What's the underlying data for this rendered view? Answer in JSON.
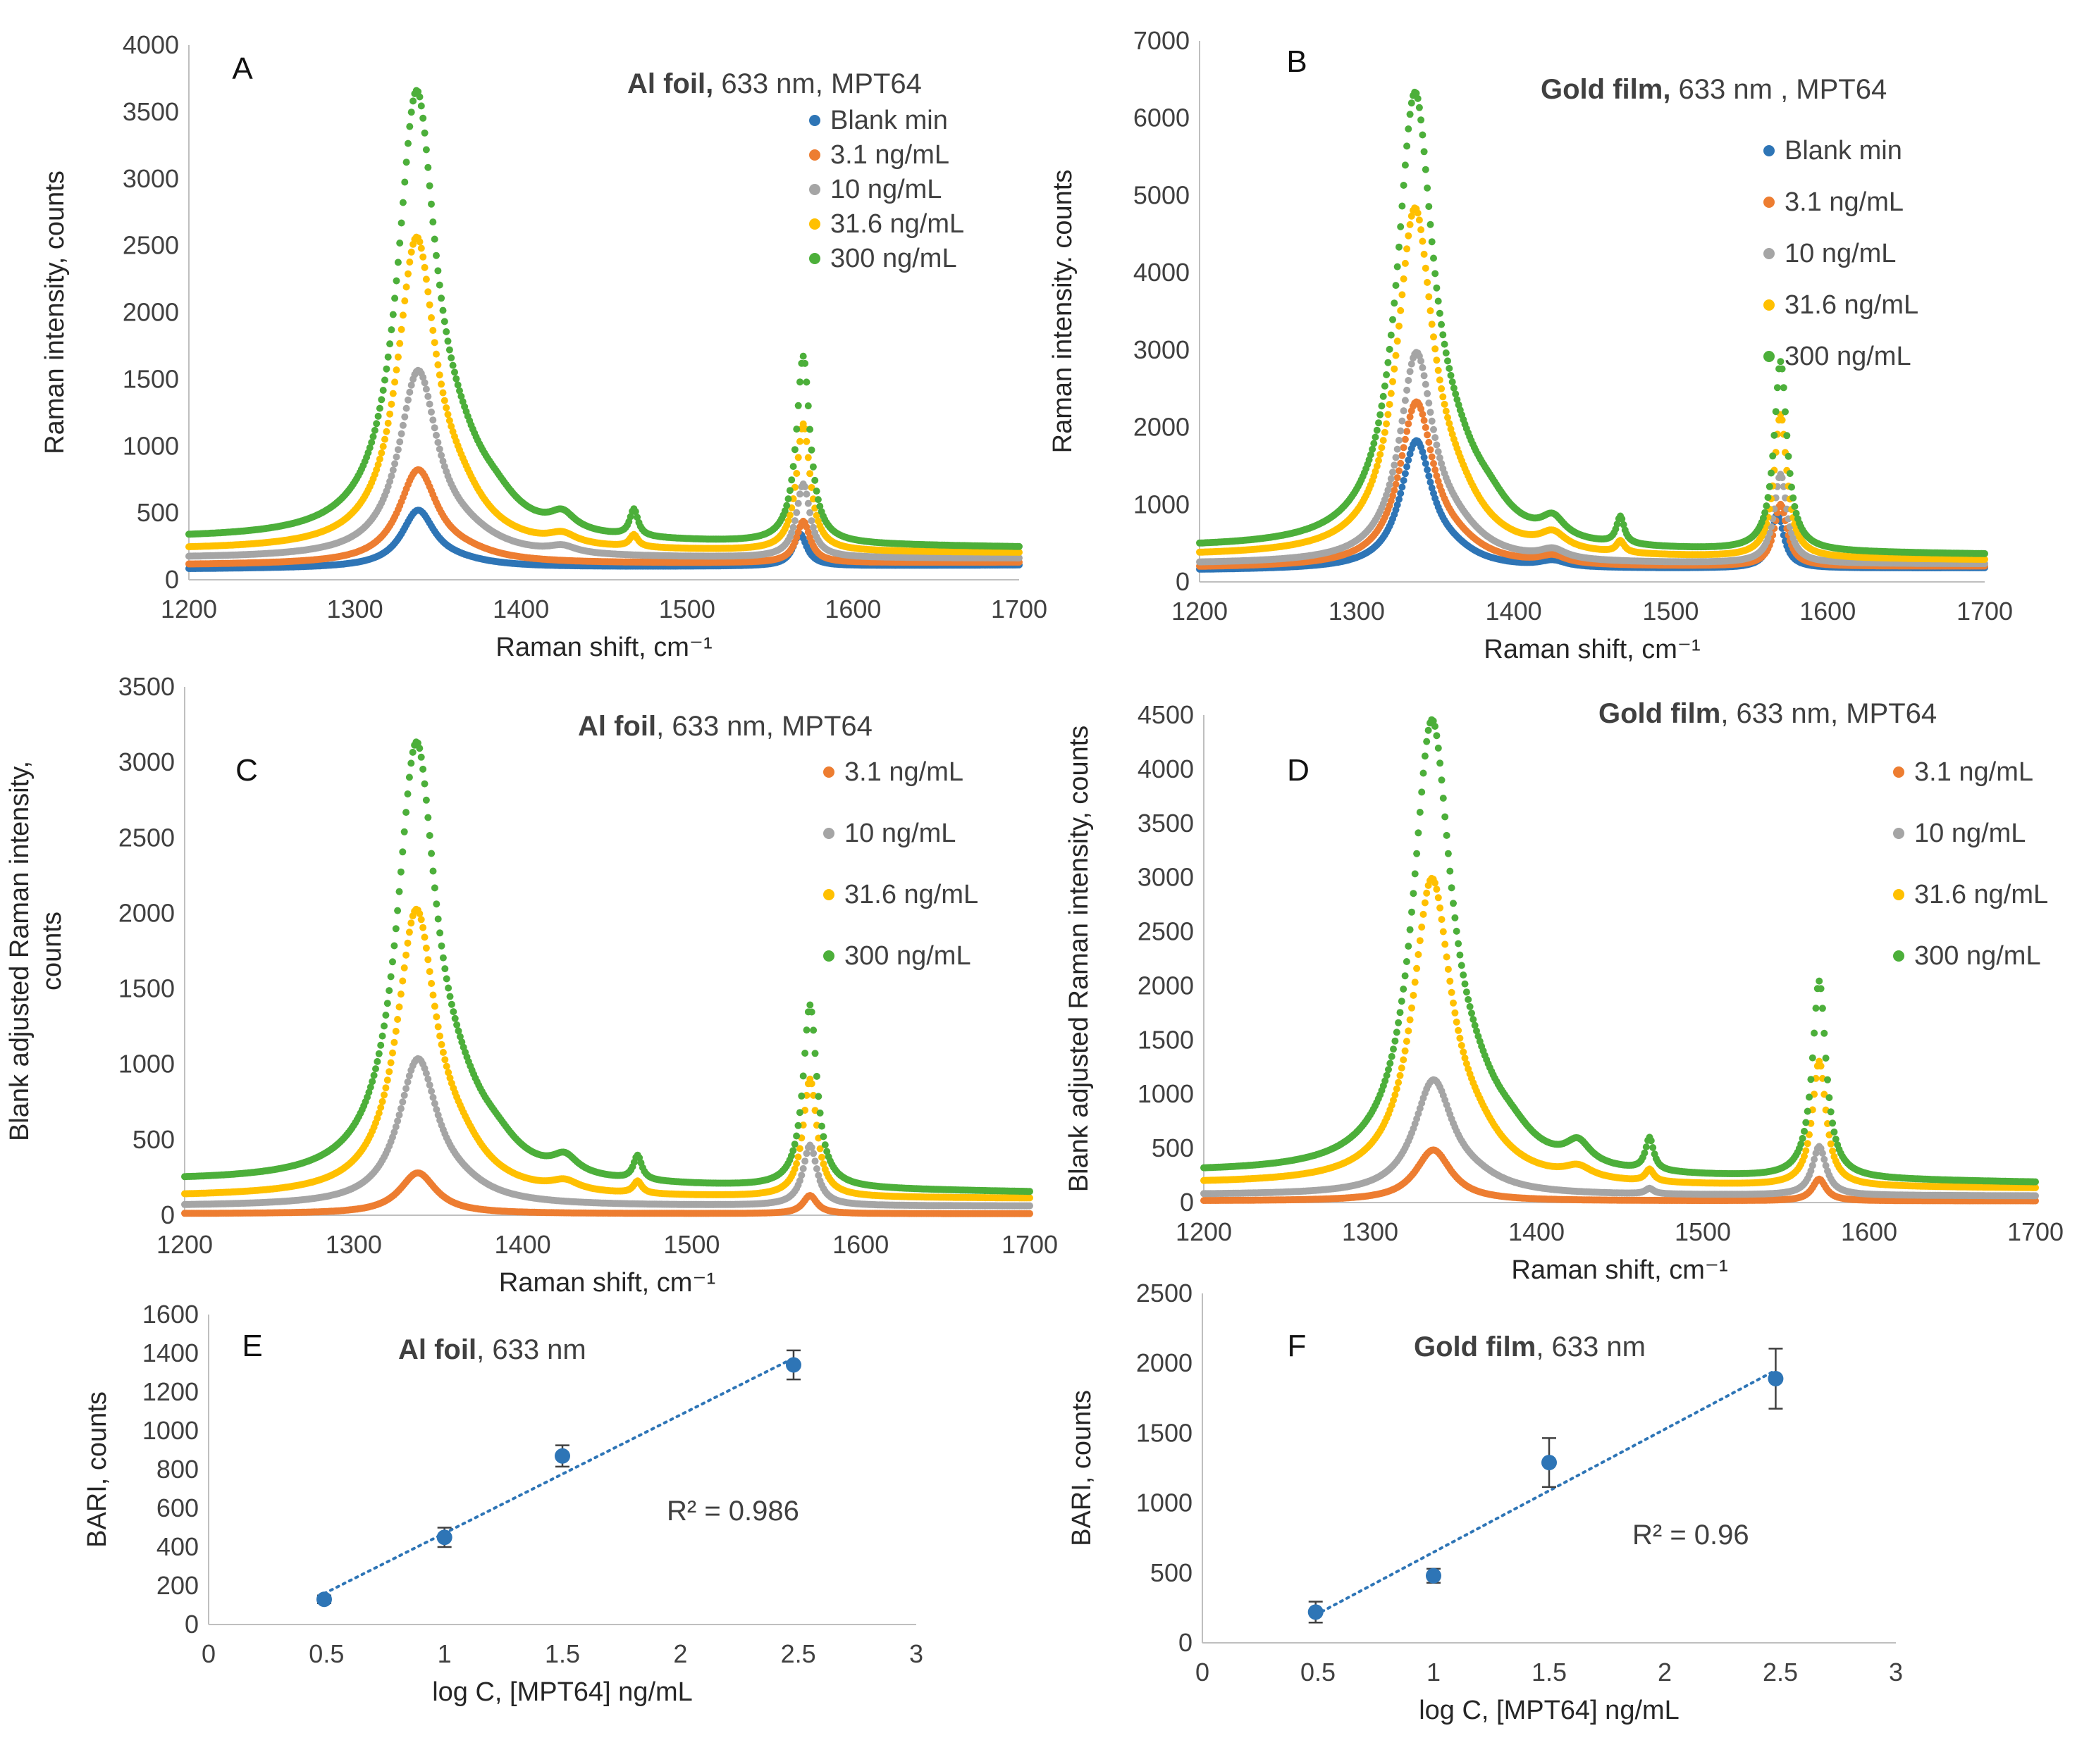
{
  "figure": {
    "panels": [
      {
        "id": "A",
        "letter": "A",
        "title_bold": "Al foil,",
        "title_rest": " 633 nm,     MPT64"
      },
      {
        "id": "B",
        "letter": "B",
        "title_bold": "Gold film,",
        "title_rest": " 633 nm ,    MPT64"
      },
      {
        "id": "C",
        "letter": "C",
        "title_bold": "Al foil",
        "title_rest": ", 633 nm,        MPT64"
      },
      {
        "id": "D",
        "letter": "D",
        "title_bold": "Gold film",
        "title_rest": ", 633 nm,     MPT64"
      },
      {
        "id": "E",
        "letter": "E",
        "title_bold": "Al foil",
        "title_rest": ", 633 nm"
      },
      {
        "id": "F",
        "letter": "F",
        "title_bold": "Gold film",
        "title_rest": ", 633 nm"
      }
    ]
  },
  "colors": {
    "blank": "#2e75b6",
    "c3_1": "#ed7d31",
    "c10": "#a5a5a5",
    "c31_6": "#ffc000",
    "c300": "#4caf3a",
    "marker": "#2e75b6",
    "axis": "#bfbfbf"
  },
  "chart_data": [
    {
      "id": "A",
      "type": "scatter",
      "title": "Al foil, 633 nm, MPT64",
      "xlabel": "Raman shift, cm⁻¹",
      "ylabel": "Raman intensity, counts",
      "xlim": [
        1200,
        1700
      ],
      "ylim": [
        0,
        4000
      ],
      "xticks": [
        1200,
        1300,
        1400,
        1500,
        1600,
        1700
      ],
      "yticks": [
        0,
        500,
        1000,
        1500,
        2000,
        2500,
        3000,
        3500,
        4000
      ],
      "legend": [
        "Blank min",
        "3.1 ng/mL",
        "10 ng/mL",
        "31.6 ng/mL",
        "300 ng/mL"
      ],
      "series": [
        {
          "name": "Blank min",
          "color_key": "blank",
          "baseline": [
            80,
            110
          ],
          "peaks": [
            [
              1338,
              410,
              12
            ],
            [
              1360,
              40,
              25
            ],
            [
              1568,
              240,
              5
            ]
          ]
        },
        {
          "name": "3.1 ng/mL",
          "color_key": "c3_1",
          "baseline": [
            110,
            130
          ],
          "peaks": [
            [
              1338,
              680,
              14
            ],
            [
              1365,
              60,
              25
            ],
            [
              1570,
              310,
              5
            ]
          ]
        },
        {
          "name": "10 ng/mL",
          "color_key": "c10",
          "baseline": [
            160,
            160
          ],
          "peaks": [
            [
              1338,
              1350,
              14
            ],
            [
              1365,
              120,
              25
            ],
            [
              1425,
              50,
              10
            ],
            [
              1570,
              550,
              5
            ]
          ]
        },
        {
          "name": "31.6 ng/mL",
          "color_key": "c31_6",
          "baseline": [
            220,
            200
          ],
          "peaks": [
            [
              1337,
              2250,
              14
            ],
            [
              1362,
              250,
              20
            ],
            [
              1425,
              70,
              10
            ],
            [
              1468,
              90,
              3
            ],
            [
              1570,
              950,
              5
            ]
          ]
        },
        {
          "name": "300 ng/mL",
          "color_key": "c300",
          "baseline": [
            300,
            240
          ],
          "peaks": [
            [
              1337,
              3200,
              14
            ],
            [
              1362,
              380,
              22
            ],
            [
              1385,
              100,
              15
            ],
            [
              1425,
              120,
              9
            ],
            [
              1468,
              200,
              3
            ],
            [
              1570,
              1400,
              5
            ]
          ]
        }
      ]
    },
    {
      "id": "B",
      "type": "scatter",
      "title": "Gold film, 633 nm, MPT64",
      "xlabel": "Raman shift, cm⁻¹",
      "ylabel": "Raman intensity. counts",
      "xlim": [
        1200,
        1700
      ],
      "ylim": [
        0,
        7000
      ],
      "xticks": [
        1200,
        1300,
        1400,
        1500,
        1600,
        1700
      ],
      "yticks": [
        0,
        1000,
        2000,
        3000,
        4000,
        5000,
        6000,
        7000
      ],
      "legend": [
        "Blank min",
        "3.1 ng/mL",
        "10 ng/mL",
        "31.6 ng/mL",
        "300 ng/mL"
      ],
      "series": [
        {
          "name": "Blank min",
          "color_key": "blank",
          "baseline": [
            150,
            180
          ],
          "peaks": [
            [
              1338,
              1600,
              12
            ],
            [
              1360,
              150,
              20
            ],
            [
              1425,
              80,
              10
            ],
            [
              1568,
              700,
              5
            ]
          ]
        },
        {
          "name": "3.1 ng/mL",
          "color_key": "c3_1",
          "baseline": [
            180,
            200
          ],
          "peaks": [
            [
              1338,
              2050,
              13
            ],
            [
              1362,
              200,
              22
            ],
            [
              1425,
              100,
              10
            ],
            [
              1570,
              800,
              5
            ]
          ]
        },
        {
          "name": "10 ng/mL",
          "color_key": "c10",
          "baseline": [
            230,
            230
          ],
          "peaks": [
            [
              1338,
              2600,
              13
            ],
            [
              1362,
              300,
              22
            ],
            [
              1425,
              120,
              10
            ],
            [
              1570,
              1150,
              5
            ]
          ]
        },
        {
          "name": "31.6 ng/mL",
          "color_key": "c31_6",
          "baseline": [
            330,
            280
          ],
          "peaks": [
            [
              1337,
              4300,
              14
            ],
            [
              1362,
              500,
              22
            ],
            [
              1425,
              200,
              10
            ],
            [
              1468,
              150,
              3
            ],
            [
              1570,
              1850,
              5
            ]
          ]
        },
        {
          "name": "300 ng/mL",
          "color_key": "c300",
          "baseline": [
            430,
            350
          ],
          "peaks": [
            [
              1337,
              5600,
              14
            ],
            [
              1362,
              700,
              22
            ],
            [
              1385,
              200,
              15
            ],
            [
              1425,
              250,
              9
            ],
            [
              1468,
              350,
              3
            ],
            [
              1570,
              2450,
              5
            ]
          ]
        }
      ]
    },
    {
      "id": "C",
      "type": "scatter",
      "title": "Al foil, 633 nm, MPT64",
      "xlabel": "Raman shift, cm⁻¹",
      "ylabel": "Blank adjusted Raman intensity, counts",
      "ylabel_lines": [
        "Blank adjusted Raman intensity,",
        "counts"
      ],
      "xlim": [
        1200,
        1700
      ],
      "ylim": [
        0,
        3500
      ],
      "xticks": [
        1200,
        1300,
        1400,
        1500,
        1600,
        1700
      ],
      "yticks": [
        0,
        500,
        1000,
        1500,
        2000,
        2500,
        3000,
        3500
      ],
      "legend": [
        "3.1 ng/mL",
        "10 ng/mL",
        "31.6 ng/mL",
        "300 ng/mL"
      ],
      "series": [
        {
          "name": "3.1 ng/mL",
          "color_key": "c3_1",
          "baseline": [
            10,
            10
          ],
          "peaks": [
            [
              1338,
              270,
              13
            ],
            [
              1570,
              120,
              5
            ]
          ]
        },
        {
          "name": "10 ng/mL",
          "color_key": "c10",
          "baseline": [
            60,
            60
          ],
          "peaks": [
            [
              1338,
              940,
              14
            ],
            [
              1362,
              80,
              22
            ],
            [
              1570,
              400,
              5
            ]
          ]
        },
        {
          "name": "31.6 ng/mL",
          "color_key": "c31_6",
          "baseline": [
            120,
            110
          ],
          "peaks": [
            [
              1337,
              1830,
              14
            ],
            [
              1362,
              200,
              20
            ],
            [
              1425,
              60,
              10
            ],
            [
              1468,
              80,
              3
            ],
            [
              1570,
              780,
              5
            ]
          ]
        },
        {
          "name": "300 ng/mL",
          "color_key": "c300",
          "baseline": [
            220,
            150
          ],
          "peaks": [
            [
              1337,
              2780,
              14
            ],
            [
              1362,
              330,
              22
            ],
            [
              1385,
              90,
              15
            ],
            [
              1425,
              110,
              9
            ],
            [
              1468,
              160,
              3
            ],
            [
              1570,
              1210,
              5
            ]
          ]
        }
      ]
    },
    {
      "id": "D",
      "type": "scatter",
      "title": "Gold film, 633 nm, MPT64",
      "xlabel": "Raman shift, cm⁻¹",
      "ylabel": "Blank adjusted Raman intensity, counts",
      "xlim": [
        1200,
        1700
      ],
      "ylim": [
        0,
        4500
      ],
      "xticks": [
        1200,
        1300,
        1400,
        1500,
        1600,
        1700
      ],
      "yticks": [
        0,
        500,
        1000,
        1500,
        2000,
        2500,
        3000,
        3500,
        4000,
        4500
      ],
      "legend": [
        "3.1 ng/mL",
        "10 ng/mL",
        "31.6 ng/mL",
        "300 ng/mL"
      ],
      "series": [
        {
          "name": "3.1 ng/mL",
          "color_key": "c3_1",
          "baseline": [
            15,
            15
          ],
          "peaks": [
            [
              1338,
              470,
              13
            ],
            [
              1570,
              200,
              5
            ]
          ]
        },
        {
          "name": "10 ng/mL",
          "color_key": "c10",
          "baseline": [
            70,
            60
          ],
          "peaks": [
            [
              1338,
              1020,
              14
            ],
            [
              1362,
              100,
              22
            ],
            [
              1468,
              50,
              3
            ],
            [
              1570,
              450,
              5
            ]
          ]
        },
        {
          "name": "31.6 ng/mL",
          "color_key": "c31_6",
          "baseline": [
            170,
            130
          ],
          "peaks": [
            [
              1337,
              2700,
              14
            ],
            [
              1362,
              300,
              22
            ],
            [
              1425,
              100,
              10
            ],
            [
              1468,
              110,
              3
            ],
            [
              1570,
              1150,
              5
            ]
          ]
        },
        {
          "name": "300 ng/mL",
          "color_key": "c300",
          "baseline": [
            270,
            180
          ],
          "peaks": [
            [
              1337,
              4000,
              14
            ],
            [
              1362,
              450,
              22
            ],
            [
              1385,
              130,
              15
            ],
            [
              1425,
              200,
              9
            ],
            [
              1468,
              300,
              3
            ],
            [
              1570,
              1820,
              5
            ]
          ]
        }
      ]
    },
    {
      "id": "E",
      "type": "scatter",
      "title": "Al foil, 633 nm",
      "xlabel": "log C, [MPT64] ng/mL",
      "ylabel": "BARI, counts",
      "xlim": [
        0,
        3
      ],
      "ylim": [
        0,
        1600
      ],
      "xticks": [
        0,
        0.5,
        1,
        1.5,
        2,
        2.5,
        3
      ],
      "yticks": [
        0,
        200,
        400,
        600,
        800,
        1000,
        1200,
        1400,
        1600
      ],
      "x": [
        0.49,
        1.0,
        1.5,
        2.48
      ],
      "y": [
        130,
        450,
        870,
        1340
      ],
      "yerr": [
        20,
        50,
        55,
        75
      ],
      "trendline": {
        "x": [
          0.49,
          2.48
        ],
        "y": [
          160,
          1375
        ]
      },
      "annotation": "R² = 0.986"
    },
    {
      "id": "F",
      "type": "scatter",
      "title": "Gold film, 633 nm",
      "xlabel": "log C, [MPT64] ng/mL",
      "ylabel": "BARI, counts",
      "xlim": [
        0,
        3
      ],
      "ylim": [
        0,
        2500
      ],
      "xticks": [
        0,
        0.5,
        1,
        1.5,
        2,
        2.5,
        3
      ],
      "yticks": [
        0,
        500,
        1000,
        1500,
        2000,
        2500
      ],
      "x": [
        0.49,
        1.0,
        1.5,
        2.48
      ],
      "y": [
        220,
        480,
        1290,
        1890
      ],
      "yerr": [
        75,
        50,
        175,
        215
      ],
      "trendline": {
        "x": [
          0.49,
          2.48
        ],
        "y": [
          200,
          1950
        ]
      },
      "annotation": "R² = 0.96"
    }
  ]
}
